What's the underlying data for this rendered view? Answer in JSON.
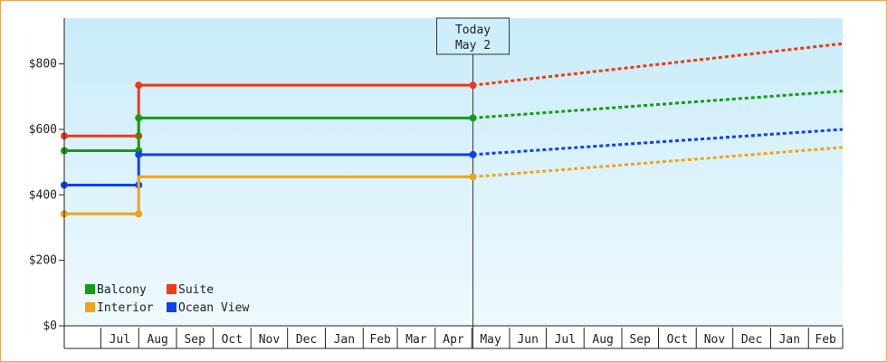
{
  "chart_data": {
    "type": "line",
    "title": "",
    "xlabel": "",
    "ylabel": "",
    "ylim": [
      0,
      940
    ],
    "yticks": [
      0,
      200,
      400,
      600,
      800
    ],
    "ytick_labels": [
      "$0",
      "$200",
      "$400",
      "$600",
      "$800"
    ],
    "x_start": "2024-06-01",
    "x_end": "2026-03-01",
    "months": [
      {
        "label": "Jul",
        "start": "2024-07-01",
        "end": "2024-07-31"
      },
      {
        "label": "Aug",
        "start": "2024-08-01",
        "end": "2024-08-31"
      },
      {
        "label": "Sep",
        "start": "2024-09-01",
        "end": "2024-09-30"
      },
      {
        "label": "Oct",
        "start": "2024-10-01",
        "end": "2024-10-31"
      },
      {
        "label": "Nov",
        "start": "2024-11-01",
        "end": "2024-11-30"
      },
      {
        "label": "Dec",
        "start": "2024-12-01",
        "end": "2024-12-31"
      },
      {
        "label": "Jan",
        "start": "2025-01-01",
        "end": "2025-01-31"
      },
      {
        "label": "Feb",
        "start": "2025-02-01",
        "end": "2025-02-28"
      },
      {
        "label": "Mar",
        "start": "2025-03-01",
        "end": "2025-03-31"
      },
      {
        "label": "Apr",
        "start": "2025-04-01",
        "end": "2025-04-30"
      },
      {
        "label": "May",
        "start": "2025-05-01",
        "end": "2025-05-31"
      },
      {
        "label": "Jun",
        "start": "2025-06-01",
        "end": "2025-06-30"
      },
      {
        "label": "Jul",
        "start": "2025-07-01",
        "end": "2025-07-31"
      },
      {
        "label": "Aug",
        "start": "2025-08-01",
        "end": "2025-08-31"
      },
      {
        "label": "Sep",
        "start": "2025-09-01",
        "end": "2025-09-30"
      },
      {
        "label": "Oct",
        "start": "2025-10-01",
        "end": "2025-10-31"
      },
      {
        "label": "Nov",
        "start": "2025-11-01",
        "end": "2025-11-30"
      },
      {
        "label": "Dec",
        "start": "2025-12-01",
        "end": "2025-12-31"
      },
      {
        "label": "Jan",
        "start": "2026-01-01",
        "end": "2026-01-31"
      },
      {
        "label": "Feb",
        "start": "2026-02-01",
        "end": "2026-02-28"
      }
    ],
    "today": {
      "line1": "Today",
      "line2": "May 2",
      "date": "2025-05-02"
    },
    "series": [
      {
        "name": "Suite",
        "color": "#f03a12",
        "history": [
          [
            "2024-06-01",
            580
          ],
          [
            "2024-08-01",
            580
          ],
          [
            "2024-08-01",
            735
          ],
          [
            "2025-05-02",
            735
          ]
        ],
        "markers": [
          [
            "2024-06-01",
            580
          ],
          [
            "2024-08-01",
            580
          ],
          [
            "2024-08-01",
            735
          ],
          [
            "2025-05-02",
            735
          ]
        ],
        "forecast": [
          [
            "2025-05-02",
            735
          ],
          [
            "2026-03-01",
            862
          ]
        ]
      },
      {
        "name": "Balcony",
        "color": "#129e12",
        "history": [
          [
            "2024-06-01",
            535
          ],
          [
            "2024-08-01",
            535
          ],
          [
            "2024-08-01",
            635
          ],
          [
            "2025-05-02",
            635
          ]
        ],
        "markers": [
          [
            "2024-06-01",
            535
          ],
          [
            "2024-08-01",
            535
          ],
          [
            "2024-08-01",
            635
          ],
          [
            "2025-05-02",
            635
          ]
        ],
        "forecast": [
          [
            "2025-05-02",
            635
          ],
          [
            "2026-03-01",
            717
          ]
        ]
      },
      {
        "name": "Ocean View",
        "color": "#1240f0",
        "history": [
          [
            "2024-06-01",
            430
          ],
          [
            "2024-08-01",
            430
          ],
          [
            "2024-08-01",
            523
          ],
          [
            "2025-05-02",
            523
          ]
        ],
        "markers": [
          [
            "2024-06-01",
            430
          ],
          [
            "2024-08-01",
            430
          ],
          [
            "2024-08-01",
            523
          ],
          [
            "2025-05-02",
            523
          ]
        ],
        "forecast": [
          [
            "2025-05-02",
            523
          ],
          [
            "2026-03-01",
            600
          ]
        ]
      },
      {
        "name": "Interior",
        "color": "#f0a416",
        "history": [
          [
            "2024-06-01",
            342
          ],
          [
            "2024-08-01",
            342
          ],
          [
            "2024-08-01",
            455
          ],
          [
            "2025-05-02",
            455
          ]
        ],
        "markers": [
          [
            "2024-06-01",
            342
          ],
          [
            "2024-08-01",
            342
          ],
          [
            "2025-05-02",
            455
          ]
        ],
        "forecast": [
          [
            "2025-05-02",
            455
          ],
          [
            "2026-03-01",
            545
          ]
        ]
      }
    ],
    "legend": {
      "placement": "bottom-left",
      "rows": [
        [
          "Balcony",
          "Suite"
        ],
        [
          "Interior",
          "Ocean View"
        ]
      ]
    },
    "colors": {
      "frame_border": "#e8a659",
      "plot_bg_top": "#c9ecfa",
      "plot_bg_bottom": "#eff9fd",
      "axis": "#222222"
    }
  }
}
